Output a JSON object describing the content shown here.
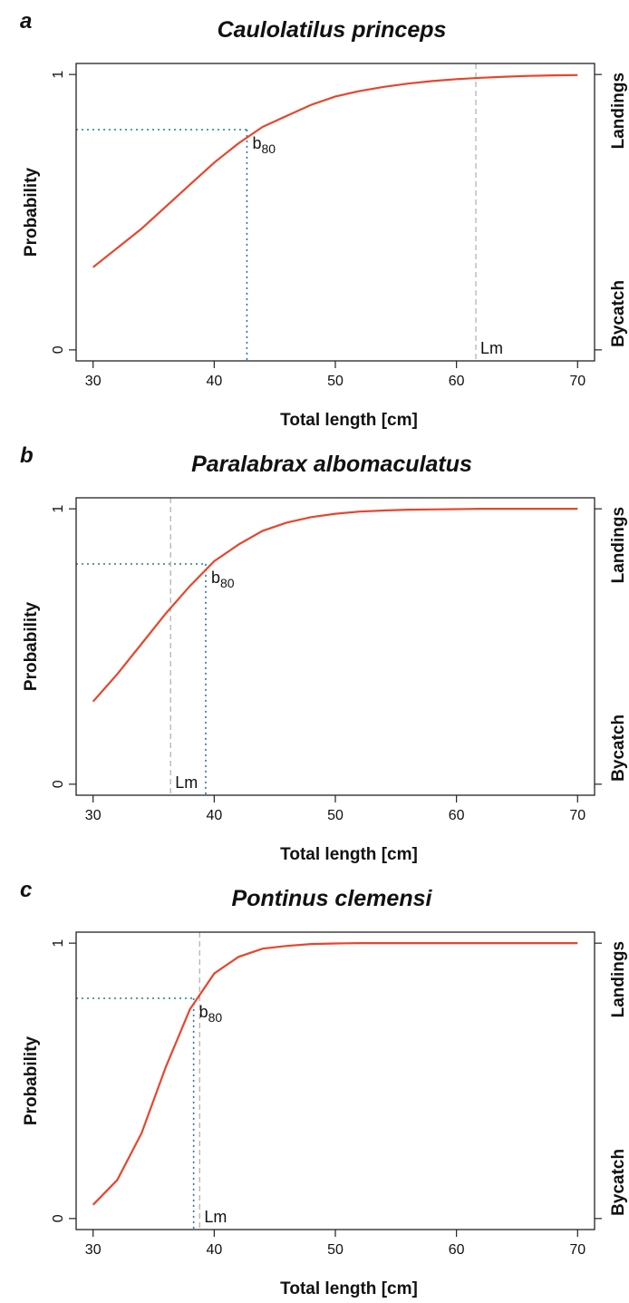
{
  "chart_data": [
    {
      "type": "line",
      "panel": "a",
      "title": "Caulolatilus princeps",
      "xlabel": "Total length [cm]",
      "ylabel": "Probability",
      "right_labels": {
        "top": "Landings",
        "bottom": "Bycatch"
      },
      "xlim": [
        28.6,
        71.4
      ],
      "ylim": [
        -0.04,
        1.04
      ],
      "xticks": [
        30,
        40,
        50,
        60,
        70
      ],
      "yticks": [
        0,
        1
      ],
      "grid": false,
      "series": [
        {
          "color": "#e8452c",
          "x": [
            30,
            32,
            34,
            36,
            38,
            40,
            42,
            44,
            46,
            48,
            50,
            52,
            54,
            56,
            58,
            60,
            62,
            64,
            66,
            68,
            70
          ],
          "y": [
            0.3,
            0.37,
            0.44,
            0.52,
            0.6,
            0.68,
            0.75,
            0.81,
            0.85,
            0.89,
            0.92,
            0.94,
            0.955,
            0.967,
            0.976,
            0.983,
            0.988,
            0.992,
            0.995,
            0.997,
            0.998
          ]
        }
      ],
      "b80": {
        "x": 42.7,
        "y": 0.8,
        "label": "b",
        "label_sub": "80"
      },
      "lm": {
        "x": 61.6,
        "label": "Lm"
      }
    },
    {
      "type": "line",
      "panel": "b",
      "title": "Paralabrax albomaculatus",
      "xlabel": "Total length [cm]",
      "ylabel": "Probability",
      "right_labels": {
        "top": "Landings",
        "bottom": "Bycatch"
      },
      "xlim": [
        28.6,
        71.4
      ],
      "ylim": [
        -0.04,
        1.04
      ],
      "xticks": [
        30,
        40,
        50,
        60,
        70
      ],
      "yticks": [
        0,
        1
      ],
      "grid": false,
      "series": [
        {
          "color": "#e8452c",
          "x": [
            30,
            32,
            34,
            36,
            38,
            40,
            42,
            44,
            46,
            48,
            50,
            52,
            54,
            56,
            58,
            60,
            62,
            64,
            66,
            68,
            70
          ],
          "y": [
            0.3,
            0.4,
            0.51,
            0.62,
            0.72,
            0.81,
            0.87,
            0.92,
            0.95,
            0.97,
            0.982,
            0.99,
            0.994,
            0.997,
            0.998,
            0.999,
            1.0,
            1.0,
            1.0,
            1.0,
            1.0
          ]
        }
      ],
      "b80": {
        "x": 39.3,
        "y": 0.8,
        "label": "b",
        "label_sub": "80"
      },
      "lm": {
        "x": 36.4,
        "label": "Lm"
      }
    },
    {
      "type": "line",
      "panel": "c",
      "title": "Pontinus clemensi",
      "xlabel": "Total length [cm]",
      "ylabel": "Probability",
      "right_labels": {
        "top": "Landings",
        "bottom": "Bycatch"
      },
      "xlim": [
        28.6,
        71.4
      ],
      "ylim": [
        -0.04,
        1.04
      ],
      "xticks": [
        30,
        40,
        50,
        60,
        70
      ],
      "yticks": [
        0,
        1
      ],
      "grid": false,
      "series": [
        {
          "color": "#e8452c",
          "x": [
            30,
            32,
            34,
            36,
            38,
            40,
            42,
            44,
            46,
            48,
            50,
            52,
            54,
            56,
            58,
            60,
            62,
            64,
            66,
            68,
            70
          ],
          "y": [
            0.05,
            0.14,
            0.31,
            0.55,
            0.76,
            0.89,
            0.95,
            0.98,
            0.99,
            0.997,
            0.999,
            1.0,
            1.0,
            1.0,
            1.0,
            1.0,
            1.0,
            1.0,
            1.0,
            1.0,
            1.0
          ]
        }
      ],
      "b80": {
        "x": 38.3,
        "y": 0.8,
        "label": "b",
        "label_sub": "80"
      },
      "lm": {
        "x": 38.8,
        "label": "Lm"
      }
    }
  ]
}
